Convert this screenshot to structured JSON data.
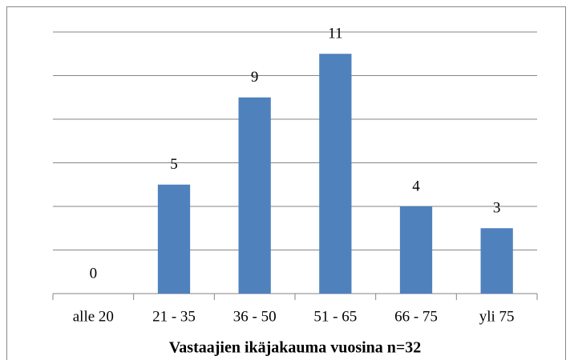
{
  "chart_data": {
    "type": "bar",
    "x_label": "Vastaajien ikäjakauma vuosina n=32",
    "categories": [
      "alle 20",
      "21 - 35",
      "36 - 50",
      "51 - 65",
      "66 - 75",
      "yli 75"
    ],
    "values": [
      0,
      5,
      9,
      11,
      4,
      3
    ],
    "color": "#4f81bd",
    "ylim": [
      0,
      12
    ],
    "yticks": [
      0,
      2,
      4,
      6,
      8,
      10,
      12
    ],
    "grid": true
  }
}
